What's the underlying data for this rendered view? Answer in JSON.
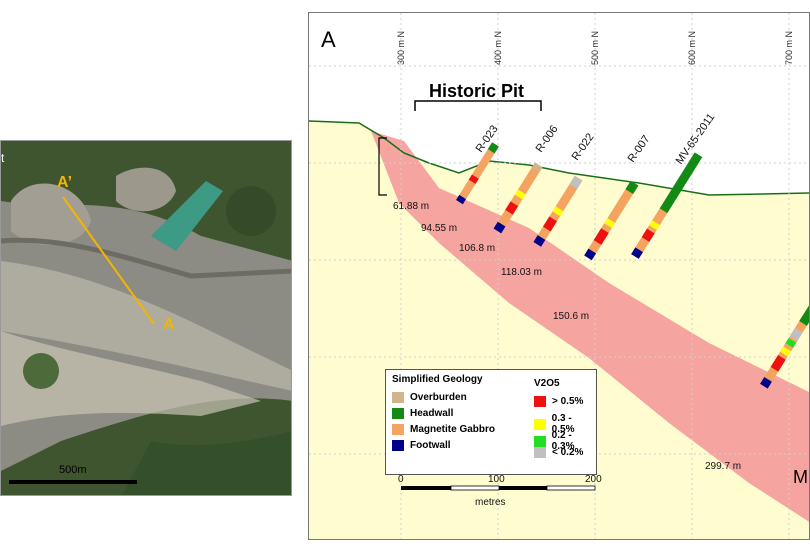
{
  "map": {
    "label_a": "A",
    "label_a_prime": "A’",
    "label_edge": "t",
    "scale_label": "500m",
    "colors": {
      "section_line": "#f5b400",
      "water": "#3c9a85",
      "forest": "#3f5530",
      "tailings": "#8d8c84"
    }
  },
  "section": {
    "panel_label": "A",
    "historic_pit_label": "Historic Pit",
    "grid_labels": [
      "300 m N",
      "400 m N",
      "500 m N",
      "600 m N",
      "700 m N"
    ],
    "holes": [
      {
        "id": "R-023",
        "depth": "61.88 m"
      },
      {
        "id": "R-006",
        "depth": "94.55 m"
      },
      {
        "id": "R-022",
        "depth": "106.8 m"
      },
      {
        "id": "R-007",
        "depth": "118.03 m"
      },
      {
        "id": "MV-65-2011",
        "depth": "150.6 m"
      },
      {
        "id": "",
        "depth": "299.7 m"
      }
    ],
    "edge_letter": "M",
    "colors": {
      "background": "#fffdd0",
      "zone": "#f59a9a",
      "topography": "#1a6e1a"
    }
  },
  "legend": {
    "geology_title": "Simplified Geology",
    "geology": [
      {
        "label": "Overburden",
        "color": "#d2b48c"
      },
      {
        "label": "Headwall",
        "color": "#138a13"
      },
      {
        "label": "Magnetite Gabbro",
        "color": "#f4a460"
      },
      {
        "label": "Footwall",
        "color": "#00008b"
      }
    ],
    "grade_title": "V2O5",
    "grades": [
      {
        "label": "> 0.5%",
        "color": "#ee1111"
      },
      {
        "label": "0.3 - 0.5%",
        "color": "#ffff00"
      },
      {
        "label": "0.2 - 0.3%",
        "color": "#22dd22"
      },
      {
        "label": "< 0.2%",
        "color": "#c0c0c0"
      }
    ]
  },
  "scale_bar": {
    "ticks": [
      "0",
      "100",
      "200"
    ],
    "unit": "metres"
  }
}
